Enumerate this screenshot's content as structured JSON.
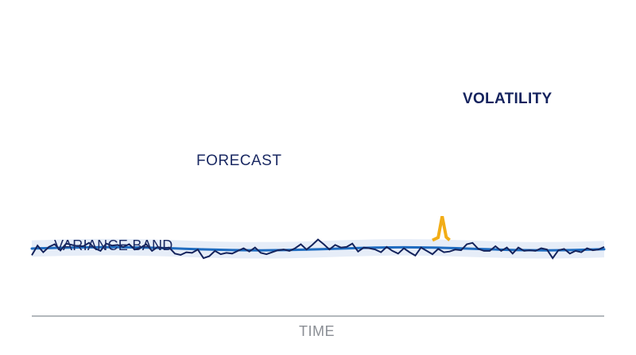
{
  "chart_data": {
    "type": "line",
    "title": "",
    "xlabel": "TIME",
    "ylabel": "",
    "grid": false,
    "legend": "none",
    "xlim": [
      0,
      100
    ],
    "ylim": [
      0,
      100
    ],
    "annotations": {
      "forecast": "FORECAST",
      "variance_band": "VARIANCE BAND",
      "volatility": "VOLATILITY"
    },
    "colors": {
      "band": "#e6edf8",
      "forecast": "#1f6cc0",
      "series": "#14235c",
      "spike": "#f2ad17",
      "axis": "#9aa0a6",
      "time_label": "#8a8e94"
    },
    "series": [
      {
        "role": "forecast",
        "x": [
          0,
          5,
          10,
          15,
          20,
          25,
          30,
          35,
          40,
          45,
          50,
          55,
          60,
          65,
          70,
          75,
          80,
          85,
          90,
          95,
          100
        ],
        "values": [
          43.9,
          46.4,
          47.9,
          48.2,
          47.0,
          44.4,
          41.4,
          39.2,
          38.5,
          39.4,
          41.7,
          44.6,
          46.8,
          47.7,
          46.8,
          44.5,
          41.6,
          39.2,
          38.5,
          39.6,
          42.0
        ]
      },
      {
        "role": "band_upper",
        "x": [
          0,
          5,
          10,
          15,
          20,
          25,
          30,
          35,
          40,
          45,
          50,
          55,
          60,
          65,
          70,
          75,
          80,
          85,
          90,
          95,
          100
        ],
        "values": [
          69.2,
          71.7,
          73.2,
          73.5,
          72.2,
          69.7,
          66.7,
          64.4,
          63.8,
          64.7,
          66.9,
          69.9,
          72.1,
          73.0,
          72.1,
          69.7,
          66.9,
          64.4,
          63.8,
          64.9,
          67.3
        ]
      },
      {
        "role": "band_lower",
        "x": [
          0,
          5,
          10,
          15,
          20,
          25,
          30,
          35,
          40,
          45,
          50,
          55,
          60,
          65,
          70,
          75,
          80,
          85,
          90,
          95,
          100
        ],
        "values": [
          18.7,
          21.2,
          22.7,
          23.0,
          21.7,
          19.2,
          16.2,
          13.9,
          13.3,
          14.2,
          16.4,
          19.4,
          21.6,
          22.5,
          21.6,
          19.2,
          16.4,
          13.9,
          13.3,
          14.4,
          16.8
        ]
      },
      {
        "role": "observed",
        "x": [
          0,
          1,
          2,
          3,
          4,
          5,
          6,
          7,
          8,
          9,
          10,
          11,
          12,
          13,
          14,
          15,
          16,
          17,
          18,
          19,
          20,
          21,
          22,
          23,
          24,
          25,
          26,
          27,
          28,
          29,
          30,
          31,
          32,
          33,
          34,
          35,
          36,
          37,
          38,
          39,
          40,
          41,
          42,
          43,
          44,
          45,
          46,
          47,
          48,
          49,
          50,
          51,
          52,
          53,
          54,
          55,
          56,
          57,
          58,
          59,
          60,
          61,
          62,
          63,
          64,
          65,
          66,
          67,
          68,
          69,
          70,
          71,
          72,
          73,
          74,
          75,
          76,
          77,
          78,
          79,
          80,
          81,
          82,
          83,
          84,
          85,
          86,
          87,
          88,
          89,
          90,
          91,
          92,
          93,
          94,
          95,
          96,
          97,
          98,
          99,
          100
        ],
        "values": [
          23.5,
          53.2,
          32.8,
          49.1,
          57.3,
          38.3,
          59.3,
          55.2,
          51.1,
          51.1,
          61.4,
          45.0,
          36.8,
          59.3,
          53.2,
          55.2,
          49.1,
          57.3,
          40.9,
          47.0,
          57.3,
          36.8,
          49.1,
          45.0,
          47.0,
          28.6,
          24.5,
          32.8,
          30.7,
          40.9,
          14.3,
          20.5,
          36.8,
          26.6,
          30.7,
          28.6,
          36.8,
          45.0,
          34.8,
          47.0,
          30.7,
          26.6,
          32.8,
          38.9,
          40.9,
          36.8,
          45.0,
          57.3,
          40.9,
          55.2,
          71.6,
          57.3,
          40.9,
          55.2,
          47.0,
          49.1,
          59.3,
          34.8,
          47.0,
          45.0,
          40.9,
          32.8,
          49.1,
          36.8,
          28.6,
          45.0,
          32.8,
          22.5,
          47.0,
          36.8,
          26.6,
          43.0,
          32.8,
          34.8,
          40.9,
          38.9,
          57.3,
          61.4,
          43.0,
          36.8,
          36.8,
          51.1,
          36.8,
          47.0,
          28.6,
          47.0,
          36.8,
          38.9,
          36.8,
          45.0,
          40.9,
          14.3,
          38.9,
          43.0,
          28.6,
          36.8,
          32.8,
          45.0,
          38.9,
          40.9,
          49.1
        ]
      },
      {
        "role": "spike",
        "x": [
          70,
          71,
          71.7,
          72.4,
          73
        ],
        "values": [
          69.5,
          78,
          143,
          79,
          70
        ]
      }
    ]
  }
}
